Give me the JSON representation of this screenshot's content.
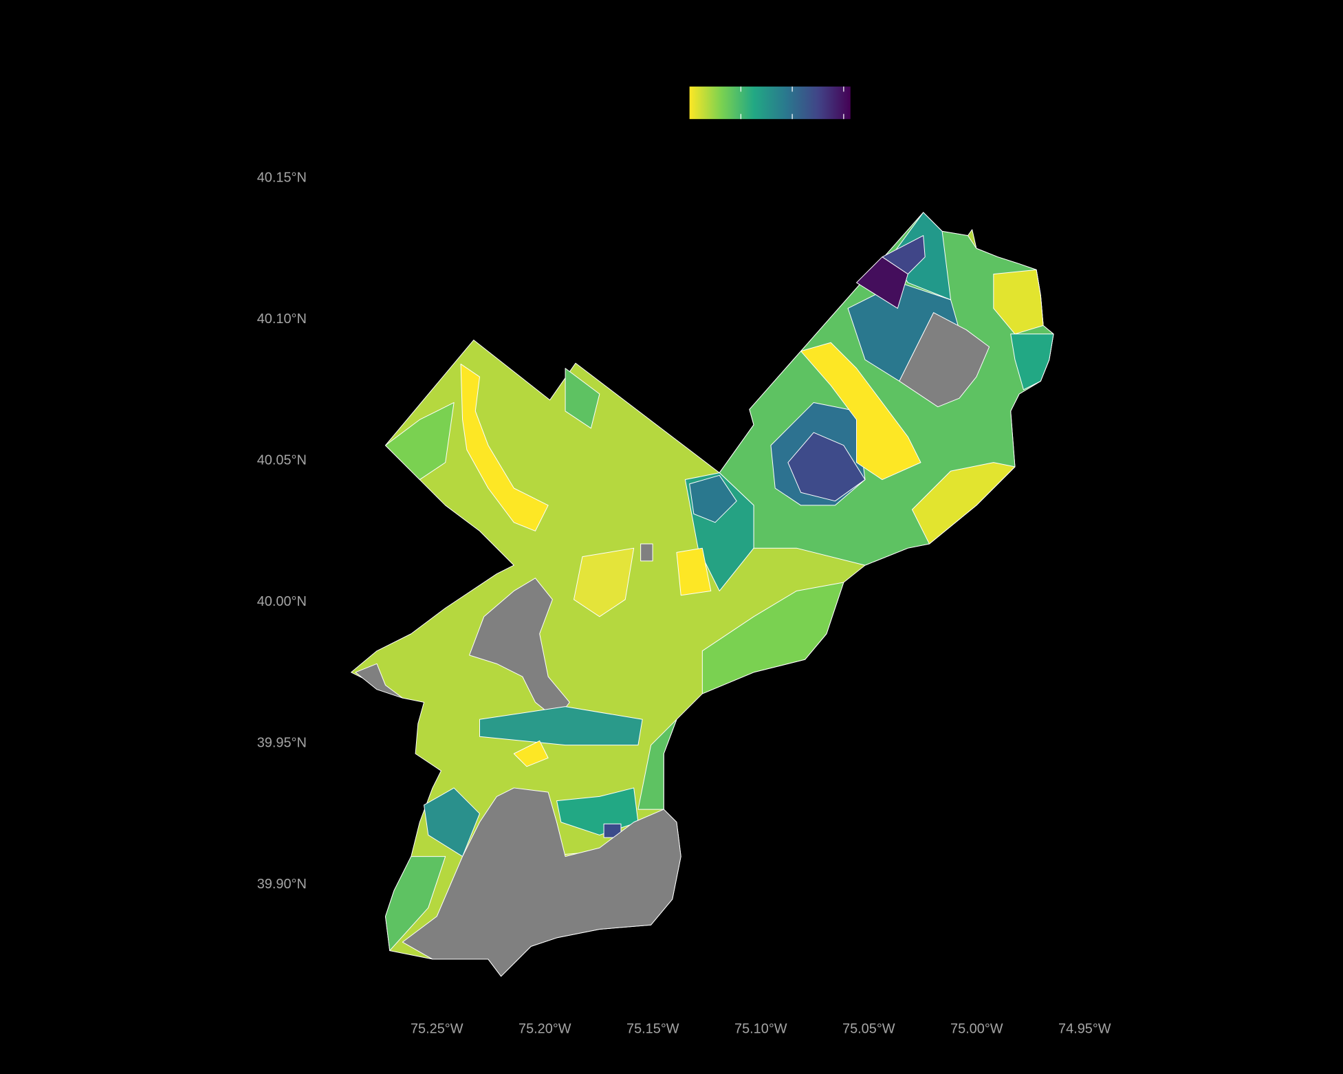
{
  "map": {
    "xlim": [
      -75.3,
      -74.92
    ],
    "ylim": [
      39.86,
      40.17
    ],
    "xticks": [
      {
        "value": -75.25,
        "label": "75.25°W"
      },
      {
        "value": -75.2,
        "label": "75.20°W"
      },
      {
        "value": -75.15,
        "label": "75.15°W"
      },
      {
        "value": -75.1,
        "label": "75.10°W"
      },
      {
        "value": -75.05,
        "label": "75.05°W"
      },
      {
        "value": -75.0,
        "label": "75.00°W"
      },
      {
        "value": -74.95,
        "label": "74.95°W"
      }
    ],
    "yticks": [
      {
        "value": 40.15,
        "label": "40.15°N"
      },
      {
        "value": 40.1,
        "label": "40.10°N"
      },
      {
        "value": 40.05,
        "label": "40.05°N"
      },
      {
        "value": 40.0,
        "label": "40.00°N"
      },
      {
        "value": 39.95,
        "label": "39.95°N"
      },
      {
        "value": 39.9,
        "label": "39.90°N"
      }
    ],
    "legend_colors": [
      "#fde725",
      "#7ad151",
      "#22a884",
      "#2a788e",
      "#414487",
      "#440154"
    ]
  }
}
